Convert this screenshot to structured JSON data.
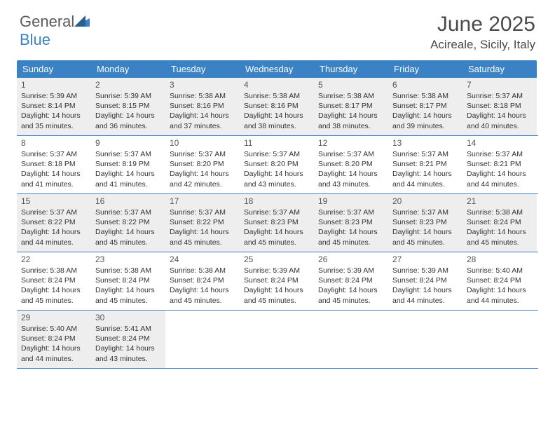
{
  "logo": {
    "word1": "General",
    "word2": "Blue"
  },
  "title": "June 2025",
  "location": "Acireale, Sicily, Italy",
  "weekdays": [
    "Sunday",
    "Monday",
    "Tuesday",
    "Wednesday",
    "Thursday",
    "Friday",
    "Saturday"
  ],
  "colors": {
    "header_bg": "#3b82c4",
    "header_text": "#ffffff",
    "shade_bg": "#eeeeee",
    "text": "#333333",
    "rule": "#3b82c4"
  },
  "weeks": [
    [
      {
        "n": 1,
        "sr": "5:39 AM",
        "ss": "8:14 PM",
        "dl": "14 hours and 35 minutes."
      },
      {
        "n": 2,
        "sr": "5:39 AM",
        "ss": "8:15 PM",
        "dl": "14 hours and 36 minutes."
      },
      {
        "n": 3,
        "sr": "5:38 AM",
        "ss": "8:16 PM",
        "dl": "14 hours and 37 minutes."
      },
      {
        "n": 4,
        "sr": "5:38 AM",
        "ss": "8:16 PM",
        "dl": "14 hours and 38 minutes."
      },
      {
        "n": 5,
        "sr": "5:38 AM",
        "ss": "8:17 PM",
        "dl": "14 hours and 38 minutes."
      },
      {
        "n": 6,
        "sr": "5:38 AM",
        "ss": "8:17 PM",
        "dl": "14 hours and 39 minutes."
      },
      {
        "n": 7,
        "sr": "5:37 AM",
        "ss": "8:18 PM",
        "dl": "14 hours and 40 minutes."
      }
    ],
    [
      {
        "n": 8,
        "sr": "5:37 AM",
        "ss": "8:18 PM",
        "dl": "14 hours and 41 minutes."
      },
      {
        "n": 9,
        "sr": "5:37 AM",
        "ss": "8:19 PM",
        "dl": "14 hours and 41 minutes."
      },
      {
        "n": 10,
        "sr": "5:37 AM",
        "ss": "8:20 PM",
        "dl": "14 hours and 42 minutes."
      },
      {
        "n": 11,
        "sr": "5:37 AM",
        "ss": "8:20 PM",
        "dl": "14 hours and 43 minutes."
      },
      {
        "n": 12,
        "sr": "5:37 AM",
        "ss": "8:20 PM",
        "dl": "14 hours and 43 minutes."
      },
      {
        "n": 13,
        "sr": "5:37 AM",
        "ss": "8:21 PM",
        "dl": "14 hours and 44 minutes."
      },
      {
        "n": 14,
        "sr": "5:37 AM",
        "ss": "8:21 PM",
        "dl": "14 hours and 44 minutes."
      }
    ],
    [
      {
        "n": 15,
        "sr": "5:37 AM",
        "ss": "8:22 PM",
        "dl": "14 hours and 44 minutes."
      },
      {
        "n": 16,
        "sr": "5:37 AM",
        "ss": "8:22 PM",
        "dl": "14 hours and 45 minutes."
      },
      {
        "n": 17,
        "sr": "5:37 AM",
        "ss": "8:22 PM",
        "dl": "14 hours and 45 minutes."
      },
      {
        "n": 18,
        "sr": "5:37 AM",
        "ss": "8:23 PM",
        "dl": "14 hours and 45 minutes."
      },
      {
        "n": 19,
        "sr": "5:37 AM",
        "ss": "8:23 PM",
        "dl": "14 hours and 45 minutes."
      },
      {
        "n": 20,
        "sr": "5:37 AM",
        "ss": "8:23 PM",
        "dl": "14 hours and 45 minutes."
      },
      {
        "n": 21,
        "sr": "5:38 AM",
        "ss": "8:24 PM",
        "dl": "14 hours and 45 minutes."
      }
    ],
    [
      {
        "n": 22,
        "sr": "5:38 AM",
        "ss": "8:24 PM",
        "dl": "14 hours and 45 minutes."
      },
      {
        "n": 23,
        "sr": "5:38 AM",
        "ss": "8:24 PM",
        "dl": "14 hours and 45 minutes."
      },
      {
        "n": 24,
        "sr": "5:38 AM",
        "ss": "8:24 PM",
        "dl": "14 hours and 45 minutes."
      },
      {
        "n": 25,
        "sr": "5:39 AM",
        "ss": "8:24 PM",
        "dl": "14 hours and 45 minutes."
      },
      {
        "n": 26,
        "sr": "5:39 AM",
        "ss": "8:24 PM",
        "dl": "14 hours and 45 minutes."
      },
      {
        "n": 27,
        "sr": "5:39 AM",
        "ss": "8:24 PM",
        "dl": "14 hours and 44 minutes."
      },
      {
        "n": 28,
        "sr": "5:40 AM",
        "ss": "8:24 PM",
        "dl": "14 hours and 44 minutes."
      }
    ],
    [
      {
        "n": 29,
        "sr": "5:40 AM",
        "ss": "8:24 PM",
        "dl": "14 hours and 44 minutes."
      },
      {
        "n": 30,
        "sr": "5:41 AM",
        "ss": "8:24 PM",
        "dl": "14 hours and 43 minutes."
      },
      null,
      null,
      null,
      null,
      null
    ]
  ],
  "labels": {
    "sunrise": "Sunrise:",
    "sunset": "Sunset:",
    "daylight": "Daylight:"
  }
}
